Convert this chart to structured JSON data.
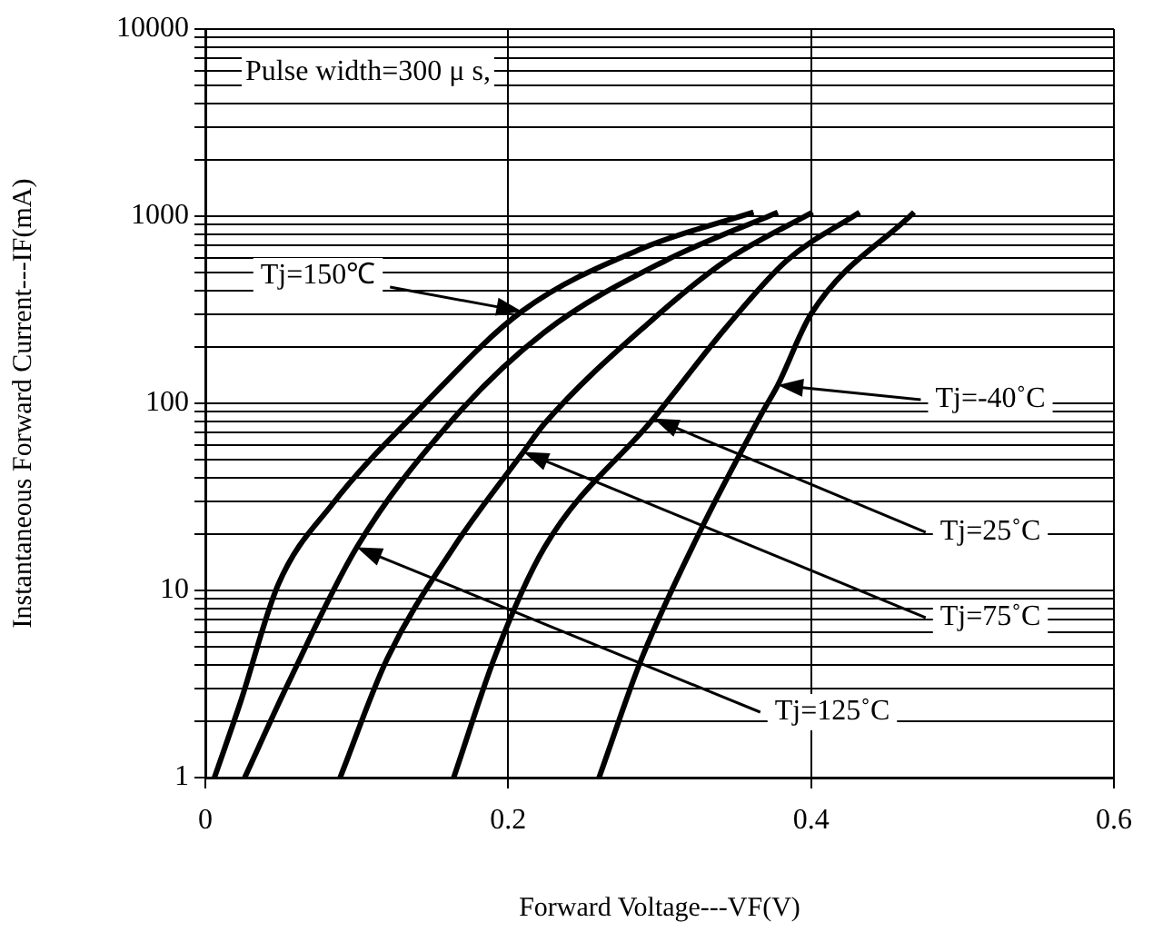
{
  "chart_data": {
    "type": "line",
    "xlabel": "Forward Voltage---VF(V)",
    "ylabel": "Instantaneous Forward Current---IF(mA)",
    "xlim": [
      0,
      0.6
    ],
    "xticks": [
      0,
      0.2,
      0.4,
      0.6
    ],
    "ylim": [
      1,
      10000
    ],
    "yticks": [
      1,
      {
        "value": 2,
        "label": null
      },
      {
        "value": 3,
        "label": null
      },
      {
        "value": 4,
        "label": null
      },
      {
        "value": 5,
        "label": null
      },
      {
        "value": 6,
        "label": null
      },
      {
        "value": 7,
        "label": null
      },
      {
        "value": 8,
        "label": null
      },
      {
        "value": 9,
        "label": null
      },
      10,
      {
        "value": 20,
        "label": null
      },
      {
        "value": 30,
        "label": null
      },
      {
        "value": 40,
        "label": null
      },
      {
        "value": 50,
        "label": null
      },
      {
        "value": 60,
        "label": null
      },
      {
        "value": 70,
        "label": null
      },
      {
        "value": 80,
        "label": null
      },
      {
        "value": 90,
        "label": null
      },
      100,
      {
        "value": 200,
        "label": null
      },
      {
        "value": 300,
        "label": null
      },
      {
        "value": 400,
        "label": null
      },
      {
        "value": 500,
        "label": null
      },
      {
        "value": 600,
        "label": null
      },
      {
        "value": 700,
        "label": null
      },
      {
        "value": 800,
        "label": null
      },
      {
        "value": 900,
        "label": null
      },
      1000,
      {
        "value": 2000,
        "label": null
      },
      {
        "value": 3000,
        "label": null
      },
      {
        "value": 4000,
        "label": null
      },
      {
        "value": 5000,
        "label": null
      },
      {
        "value": 6000,
        "label": null
      },
      {
        "value": 7000,
        "label": null
      },
      {
        "value": 8000,
        "label": null
      },
      {
        "value": 9000,
        "label": null
      },
      10000
    ],
    "log": true,
    "grid": true,
    "legend": false,
    "marker": "none",
    "line_style": "solid",
    "series": [
      {
        "color": "#000000",
        "x": [
          0.006,
          0.023,
          0.048,
          0.084,
          0.144,
          0.209,
          0.288,
          0.362
        ],
        "values": [
          1,
          2.5,
          10.7,
          29,
          98,
          310,
          670,
          1050
        ]
      },
      {
        "color": "#000000",
        "x": [
          0.026,
          0.054,
          0.1,
          0.161,
          0.224,
          0.304,
          0.378
        ],
        "values": [
          1,
          3.1,
          17,
          78,
          240,
          580,
          1050
        ]
      },
      {
        "color": "#000000",
        "x": [
          0.089,
          0.12,
          0.164,
          0.21,
          0.224,
          0.293,
          0.344,
          0.401
        ],
        "values": [
          1,
          4.3,
          17,
          55,
          78,
          270,
          580,
          1050
        ]
      },
      {
        "color": "#000000",
        "x": [
          0.164,
          0.192,
          0.224,
          0.296,
          0.344,
          0.384,
          0.432
        ],
        "values": [
          1,
          4.6,
          17,
          83,
          255,
          580,
          1050
        ]
      },
      {
        "color": "#000000",
        "x": [
          0.26,
          0.288,
          0.324,
          0.368,
          0.378,
          0.4,
          0.468
        ],
        "values": [
          1,
          4.3,
          18.7,
          90,
          125,
          300,
          1050
        ]
      }
    ],
    "annotations": [
      "Pulse width=300 μ s,",
      "Tj=150℃",
      "Tj=-40˚C",
      "Tj=25˚C",
      "Tj=75˚C",
      "Tj=125˚C"
    ]
  }
}
